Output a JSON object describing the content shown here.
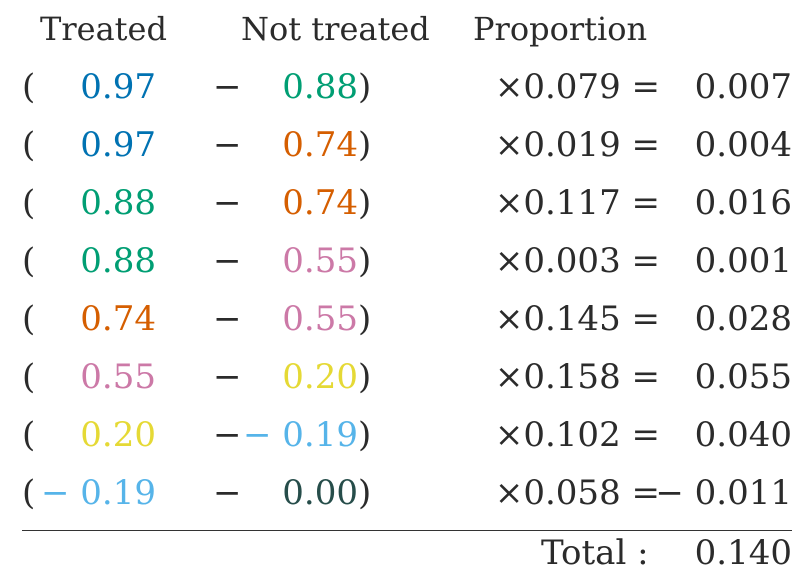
{
  "headers": {
    "treated": "Treated",
    "not_treated": "Not treated",
    "proportion": "Proportion"
  },
  "colors": {
    "0.97": "#0072B2",
    "0.88": "#009E73",
    "0.74": "#D55E00",
    "0.55": "#CC79A7",
    "0.20": "#E5D935",
    "-0.19": "#56B4E9",
    "0.00": "#264d4a",
    "text": "#2b2b2b"
  },
  "rows": [
    {
      "treated": "0.97",
      "not_treated": "0.88",
      "proportion": "×0.079 =",
      "result": "0.007"
    },
    {
      "treated": "0.97",
      "not_treated": "0.74",
      "proportion": "×0.019 =",
      "result": "0.004"
    },
    {
      "treated": "0.88",
      "not_treated": "0.74",
      "proportion": "×0.117 =",
      "result": "0.016"
    },
    {
      "treated": "0.88",
      "not_treated": "0.55",
      "proportion": "×0.003 =",
      "result": "0.001"
    },
    {
      "treated": "0.74",
      "not_treated": "0.55",
      "proportion": "×0.145 =",
      "result": "0.028"
    },
    {
      "treated": "0.55",
      "not_treated": "0.20",
      "proportion": "×0.158 =",
      "result": "0.055"
    },
    {
      "treated": "0.20",
      "not_treated": "− 0.19",
      "proportion": "×0.102 =",
      "result": "0.040"
    },
    {
      "treated": "− 0.19",
      "not_treated": "0.00",
      "proportion": "×0.058 =",
      "result": "− 0.011"
    }
  ],
  "open_paren": "(",
  "close_paren": ")",
  "minus": "−",
  "total": {
    "label": "Total :",
    "value": "0.140"
  }
}
